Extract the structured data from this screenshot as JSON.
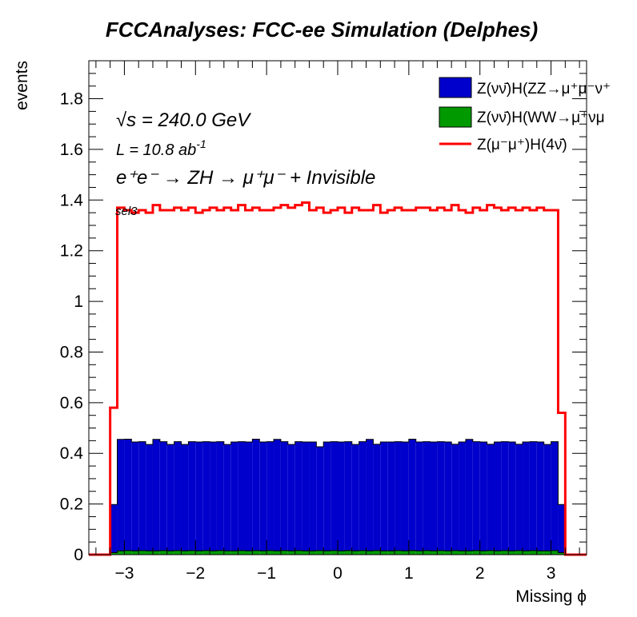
{
  "chart_data": {
    "type": "histogram",
    "title": "FCCAnalyses: FCC-ee Simulation (Delphes)",
    "xlabel": "Missing ϕ",
    "ylabel": "events",
    "xlim": [
      -3.5,
      3.5
    ],
    "ylim": [
      0,
      1.95
    ],
    "xticks": [
      -3,
      -2,
      -1,
      0,
      1,
      2,
      3
    ],
    "yticks": [
      0,
      0.2,
      0.4,
      0.6,
      0.8,
      1,
      1.2,
      1.4,
      1.6,
      1.8
    ],
    "x_tick_labels": [
      "−3",
      "−2",
      "−1",
      "0",
      "1",
      "2",
      "3"
    ],
    "y_tick_labels": [
      "0",
      "0.2",
      "0.4",
      "0.6",
      "0.8",
      "1",
      "1.2",
      "1.4",
      "1.6",
      "1.8"
    ],
    "bin_edges_range": [
      -3.2,
      3.2
    ],
    "n_bins": 64,
    "annotations": {
      "sqrt_s_symbol": "√s",
      "sqrt_s_value": " = 240.0 GeV",
      "lumi_prefix": "L = 10.8 ab",
      "lumi_exp": "-1",
      "process": "e⁺e⁻ → ZH → μ⁺μ⁻ + Invisible",
      "selection": "sel3"
    },
    "series": [
      {
        "name": "Z(νν̄)H(ZZ→μ⁺μ⁻ν⁺",
        "style": "stacked-fill",
        "color": "#0000cc",
        "values": [
          0.19,
          0.44,
          0.44,
          0.43,
          0.43,
          0.42,
          0.44,
          0.43,
          0.42,
          0.43,
          0.42,
          0.43,
          0.43,
          0.43,
          0.43,
          0.43,
          0.42,
          0.43,
          0.43,
          0.43,
          0.44,
          0.43,
          0.43,
          0.44,
          0.43,
          0.42,
          0.43,
          0.43,
          0.43,
          0.41,
          0.43,
          0.43,
          0.43,
          0.43,
          0.42,
          0.43,
          0.44,
          0.42,
          0.43,
          0.43,
          0.43,
          0.43,
          0.44,
          0.43,
          0.43,
          0.43,
          0.43,
          0.43,
          0.42,
          0.43,
          0.44,
          0.43,
          0.43,
          0.42,
          0.43,
          0.43,
          0.43,
          0.42,
          0.43,
          0.43,
          0.43,
          0.42,
          0.43,
          0.19
        ]
      },
      {
        "name": "Z(νν̄)H(WW→μ⁺νμ",
        "style": "stacked-fill",
        "color": "#009900",
        "values": [
          0.008,
          0.015,
          0.016,
          0.015,
          0.016,
          0.015,
          0.015,
          0.016,
          0.015,
          0.016,
          0.015,
          0.016,
          0.015,
          0.016,
          0.015,
          0.016,
          0.015,
          0.015,
          0.016,
          0.015,
          0.016,
          0.015,
          0.016,
          0.015,
          0.016,
          0.015,
          0.016,
          0.015,
          0.015,
          0.016,
          0.015,
          0.016,
          0.015,
          0.016,
          0.015,
          0.016,
          0.015,
          0.016,
          0.015,
          0.015,
          0.016,
          0.015,
          0.016,
          0.015,
          0.016,
          0.015,
          0.016,
          0.015,
          0.016,
          0.015,
          0.015,
          0.016,
          0.015,
          0.016,
          0.015,
          0.016,
          0.015,
          0.016,
          0.015,
          0.016,
          0.015,
          0.015,
          0.016,
          0.008
        ]
      },
      {
        "name": "Z(μ⁻μ⁺)H(4ν̄)",
        "style": "step-line",
        "color": "#ff0000",
        "values": [
          0.58,
          1.37,
          1.36,
          1.35,
          1.36,
          1.35,
          1.38,
          1.36,
          1.36,
          1.37,
          1.36,
          1.37,
          1.35,
          1.36,
          1.37,
          1.36,
          1.37,
          1.36,
          1.38,
          1.36,
          1.37,
          1.36,
          1.36,
          1.37,
          1.38,
          1.37,
          1.38,
          1.39,
          1.36,
          1.37,
          1.35,
          1.36,
          1.37,
          1.35,
          1.37,
          1.36,
          1.36,
          1.38,
          1.35,
          1.36,
          1.37,
          1.36,
          1.36,
          1.37,
          1.37,
          1.36,
          1.37,
          1.36,
          1.38,
          1.36,
          1.35,
          1.37,
          1.36,
          1.38,
          1.37,
          1.36,
          1.37,
          1.36,
          1.37,
          1.36,
          1.37,
          1.36,
          1.36,
          0.56
        ]
      }
    ]
  }
}
